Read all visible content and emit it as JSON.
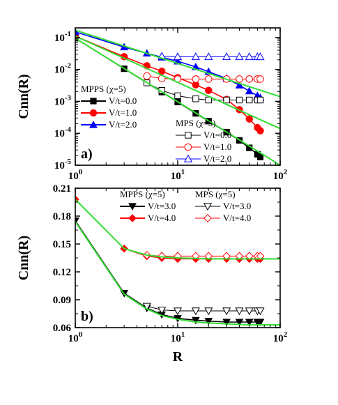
{
  "chart_data": [
    {
      "type": "line",
      "panel_label": "a)",
      "ylabel": "Cnn(R)",
      "xlabel": "",
      "xscale": "log",
      "yscale": "log",
      "xlim": [
        1,
        100
      ],
      "ylim": [
        1e-05,
        0.2
      ],
      "xticks": [
        "10^0",
        "10^1",
        "10^2"
      ],
      "yticks": [
        "10^-5",
        "10^-4",
        "10^-3",
        "10^-2",
        "10^-1"
      ],
      "legend_titles": [
        "MPPS (χ=5)",
        "MPS (χ=5)"
      ],
      "series": [
        {
          "name": "V/t=0.0",
          "group": "MPPS",
          "color": "#000000",
          "marker": "square-filled",
          "x": [
            1,
            3,
            5,
            7,
            10,
            15,
            20,
            30,
            40,
            50,
            60,
            64
          ],
          "y": [
            0.095,
            0.0105,
            0.0038,
            0.00195,
            0.00095,
            0.00042,
            0.00024,
            0.000108,
            6e-05,
            3.5e-05,
            2.2e-05,
            1.8e-05
          ]
        },
        {
          "name": "V/t=1.0",
          "group": "MPPS",
          "color": "#ff0000",
          "marker": "circle-filled",
          "x": [
            1,
            3,
            5,
            7,
            10,
            15,
            20,
            30,
            40,
            50,
            60,
            64
          ],
          "y": [
            0.11,
            0.025,
            0.013,
            0.0088,
            0.0055,
            0.0033,
            0.0022,
            0.00115,
            0.00055,
            0.00028,
            0.00015,
            0.00012
          ]
        },
        {
          "name": "V/t=2.0",
          "group": "MPPS",
          "color": "#0000ff",
          "marker": "triangle-filled",
          "x": [
            1,
            3,
            5,
            7,
            10,
            15,
            20,
            30,
            40,
            50,
            60,
            64
          ],
          "y": [
            0.15,
            0.05,
            0.032,
            0.024,
            0.018,
            0.012,
            0.0085,
            0.0052,
            0.0032,
            0.0021,
            0.0015,
            0.0013
          ]
        },
        {
          "name": "V/t=0.0",
          "group": "MPS",
          "color": "#000000",
          "marker": "square-open",
          "x": [
            5,
            7,
            10,
            15,
            20,
            30,
            40,
            50,
            60,
            64
          ],
          "y": [
            0.0038,
            0.0022,
            0.0015,
            0.0012,
            0.0011,
            0.0011,
            0.0011,
            0.0011,
            0.0011,
            0.0011
          ]
        },
        {
          "name": "V/t=1.0",
          "group": "MPS",
          "color": "#ff0000",
          "marker": "circle-open",
          "x": [
            5,
            7,
            10,
            15,
            20,
            30,
            40,
            50,
            60,
            64
          ],
          "y": [
            0.0062,
            0.0052,
            0.005,
            0.005,
            0.005,
            0.005,
            0.005,
            0.005,
            0.005,
            0.005
          ]
        },
        {
          "name": "V/t=2.0",
          "group": "MPS",
          "color": "#0000ff",
          "marker": "triangle-open",
          "x": [
            7,
            10,
            15,
            20,
            30,
            40,
            50,
            60,
            64
          ],
          "y": [
            0.026,
            0.025,
            0.025,
            0.025,
            0.025,
            0.025,
            0.025,
            0.025,
            0.025
          ]
        }
      ],
      "fit_lines": [
        {
          "x": [
            1,
            100
          ],
          "y": [
            0.095,
            1e-05
          ],
          "color": "#33dd33"
        },
        {
          "x": [
            1,
            100
          ],
          "y": [
            0.11,
            0.00014
          ],
          "color": "#33dd33"
        },
        {
          "x": [
            1,
            100
          ],
          "y": [
            0.17,
            0.0014
          ],
          "color": "#33dd33"
        }
      ]
    },
    {
      "type": "line",
      "panel_label": "b)",
      "ylabel": "Cnn(R)",
      "xlabel": "R",
      "xscale": "log",
      "yscale": "linear",
      "xlim": [
        1,
        100
      ],
      "ylim": [
        0.06,
        0.21
      ],
      "xticks": [
        "10^0",
        "10^1",
        "10^2"
      ],
      "yticks": [
        "0.06",
        "0.09",
        "0.12",
        "0.15",
        "0.18",
        "0.21"
      ],
      "legend_titles": [
        "MPPS (χ=5)",
        "MPS (χ=5)"
      ],
      "series": [
        {
          "name": "V/t=3.0",
          "group": "MPPS",
          "color": "#000000",
          "marker": "triangle-down-filled",
          "x": [
            1,
            3,
            5,
            7,
            10,
            15,
            20,
            30,
            40,
            50,
            60,
            64
          ],
          "y": [
            0.175,
            0.097,
            0.081,
            0.074,
            0.07,
            0.068,
            0.067,
            0.066,
            0.066,
            0.066,
            0.066,
            0.066
          ]
        },
        {
          "name": "V/t=4.0",
          "group": "MPPS",
          "color": "#ff0000",
          "marker": "diamond-filled",
          "x": [
            1,
            3,
            5,
            7,
            10,
            15,
            20,
            30,
            40,
            50,
            60,
            64
          ],
          "y": [
            0.198,
            0.145,
            0.137,
            0.135,
            0.134,
            0.134,
            0.134,
            0.134,
            0.134,
            0.134,
            0.134,
            0.134
          ]
        },
        {
          "name": "V/t=3.0",
          "group": "MPS",
          "color": "#000000",
          "marker": "triangle-down-open",
          "x": [
            5,
            7,
            10,
            15,
            20,
            30,
            40,
            50,
            60,
            64
          ],
          "y": [
            0.083,
            0.079,
            0.078,
            0.078,
            0.078,
            0.078,
            0.078,
            0.078,
            0.078,
            0.078
          ]
        },
        {
          "name": "V/t=4.0",
          "group": "MPS",
          "color": "#ff0000",
          "marker": "diamond-open",
          "x": [
            5,
            7,
            10,
            15,
            20,
            30,
            40,
            50,
            60,
            64
          ],
          "y": [
            0.138,
            0.137,
            0.137,
            0.137,
            0.137,
            0.137,
            0.137,
            0.137,
            0.137,
            0.137
          ]
        }
      ],
      "fit_lines": [
        {
          "x": [
            1,
            3,
            5,
            7,
            10,
            15,
            20,
            30,
            50,
            100
          ],
          "y": [
            0.174,
            0.096,
            0.08,
            0.073,
            0.069,
            0.066,
            0.065,
            0.064,
            0.063,
            0.063
          ],
          "color": "#33dd33"
        },
        {
          "x": [
            1,
            3,
            5,
            7,
            10,
            20,
            50,
            100
          ],
          "y": [
            0.198,
            0.145,
            0.138,
            0.136,
            0.135,
            0.134,
            0.134,
            0.134
          ],
          "color": "#33dd33"
        }
      ]
    }
  ]
}
